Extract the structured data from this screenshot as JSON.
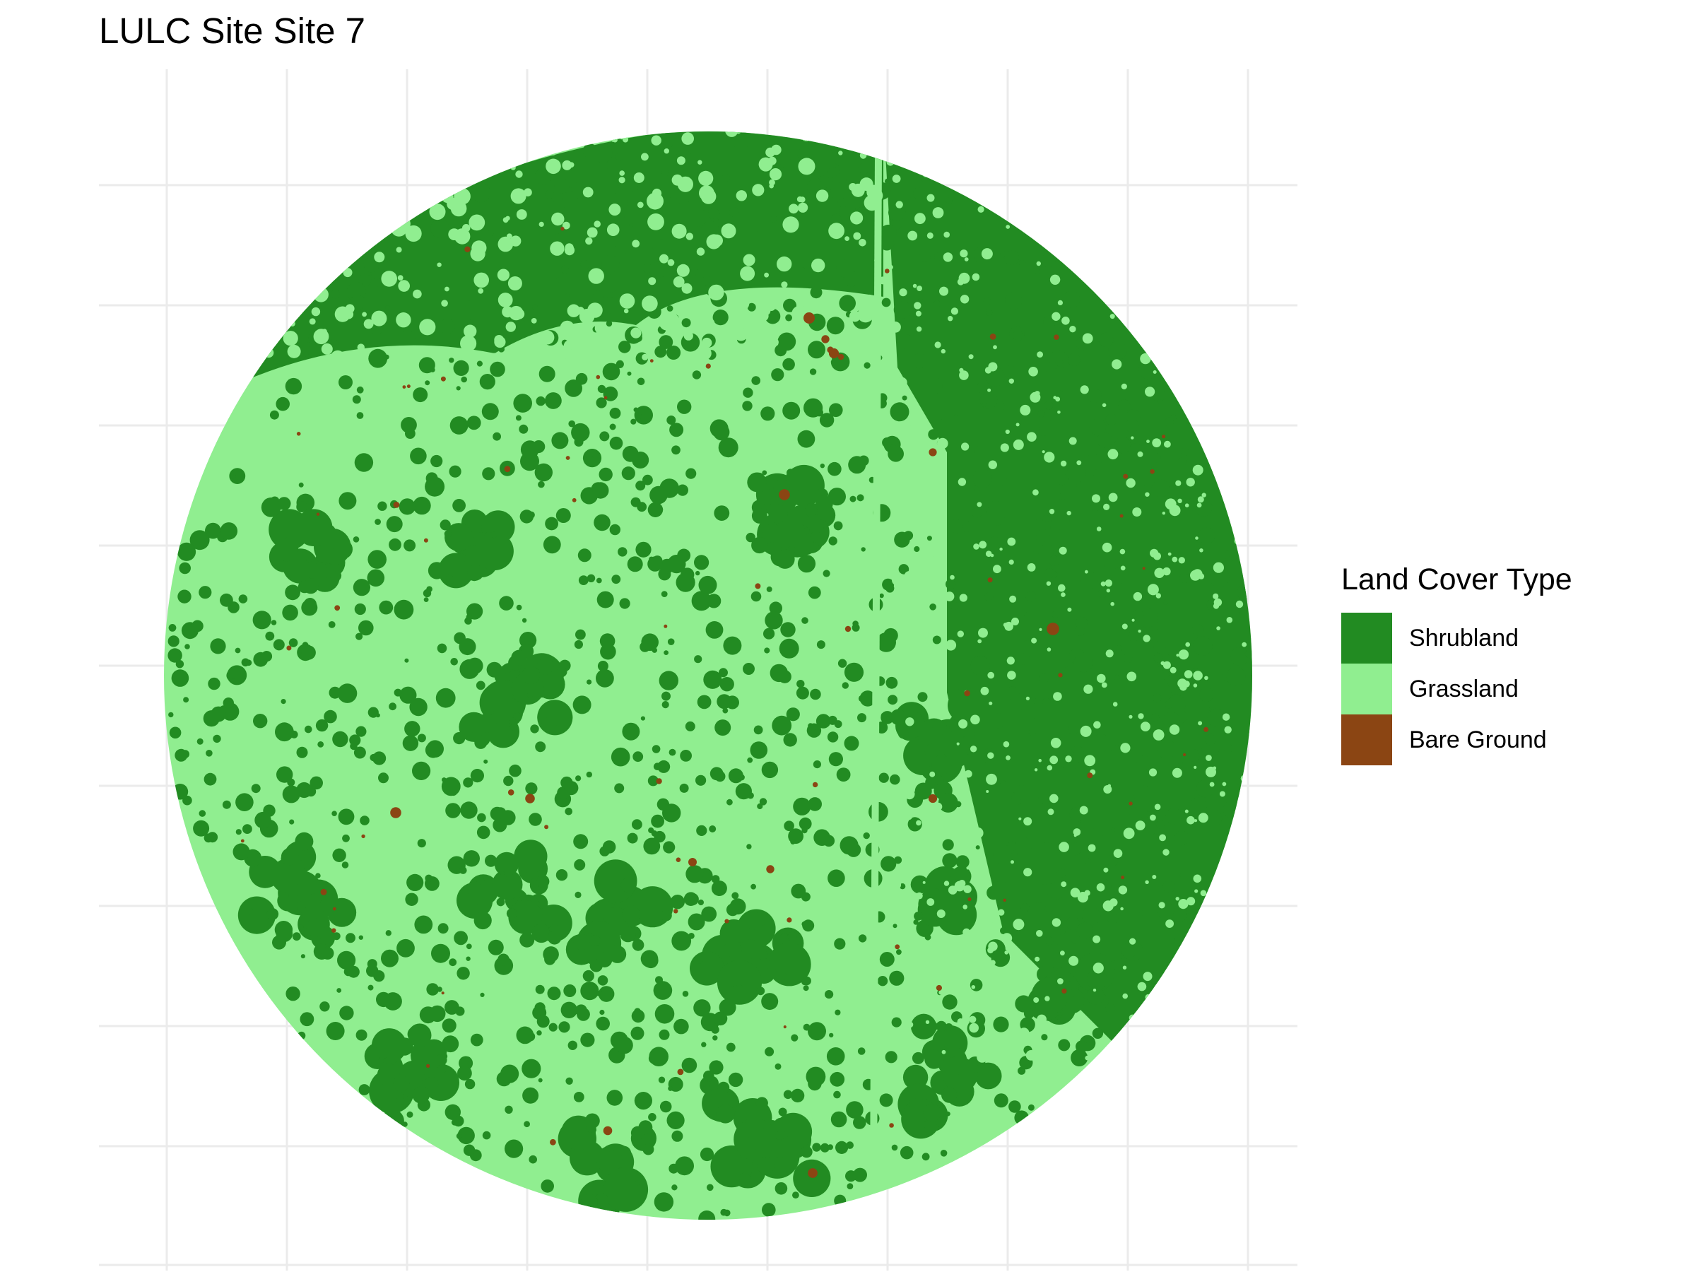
{
  "title": "LULC Site Site 7",
  "legend": {
    "title": "Land Cover Type",
    "items": [
      {
        "label": "Shrubland",
        "color": "#228B22"
      },
      {
        "label": "Grassland",
        "color": "#90EE90"
      },
      {
        "label": "Bare Ground",
        "color": "#8B4513"
      }
    ]
  },
  "map": {
    "shape": "circle",
    "dominant_class": "Grassland",
    "shrubland_color": "#228B22",
    "grassland_color": "#90EE90",
    "bare_ground_color": "#8B4513",
    "grid": true,
    "axis_labels_shown": false,
    "legend_position": "right"
  }
}
